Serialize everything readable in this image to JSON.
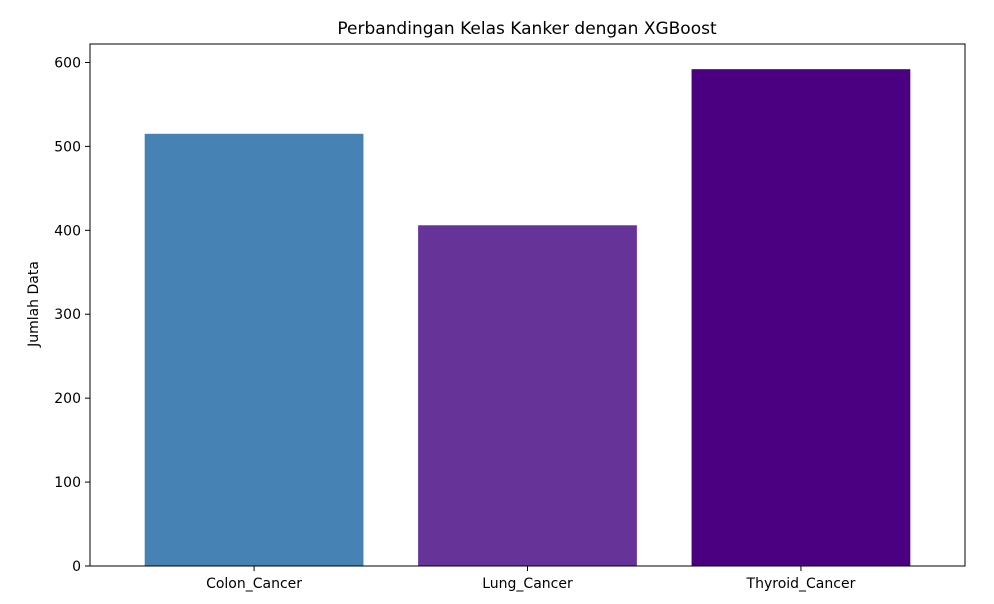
{
  "chart_data": {
    "type": "bar",
    "title": "Perbandingan Kelas Kanker dengan XGBoost",
    "xlabel": "",
    "ylabel": "Jumlah Data",
    "categories": [
      "Colon_Cancer",
      "Lung_Cancer",
      "Thyroid_Cancer"
    ],
    "values": [
      515,
      406,
      592
    ],
    "colors": [
      "#4682b4",
      "#663399",
      "#4b0082"
    ],
    "ylim": [
      0,
      622
    ],
    "yticks": [
      0,
      100,
      200,
      300,
      400,
      500,
      600
    ],
    "grid": false,
    "legend": false
  }
}
